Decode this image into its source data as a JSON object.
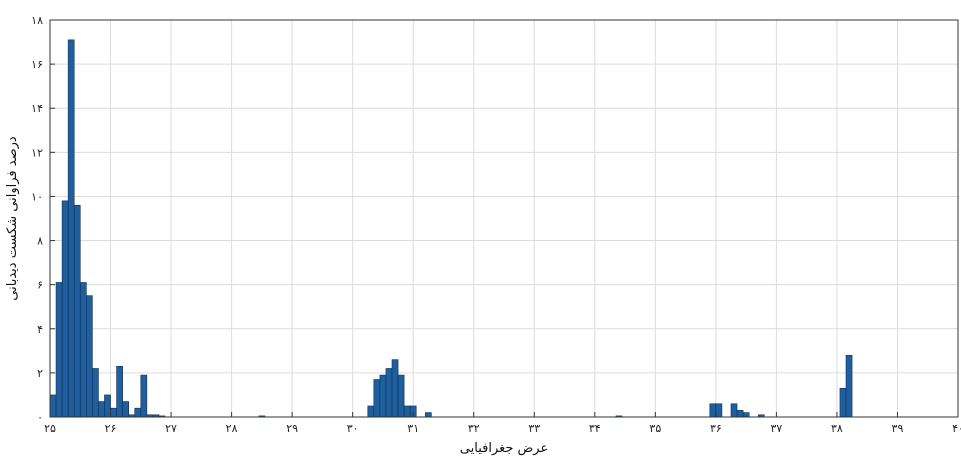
{
  "chart_data": {
    "type": "bar",
    "xlabel": "عرض جغرافیایی",
    "ylabel": "درصد فراوانی شکست دیدبانی",
    "xlim": [
      25,
      40
    ],
    "ylim": [
      0,
      18
    ],
    "x_ticks": [
      25,
      26,
      27,
      28,
      29,
      30,
      31,
      32,
      33,
      34,
      35,
      36,
      37,
      38,
      39,
      40
    ],
    "x_tick_labels": [
      "۲۵",
      "۲۶",
      "۲۷",
      "۲۸",
      "۲۹",
      "۳۰",
      "۳۱",
      "۳۲",
      "۳۳",
      "۳۴",
      "۳۵",
      "۳۶",
      "۳۷",
      "۳۸",
      "۳۹",
      "۴۰"
    ],
    "y_ticks": [
      0,
      2,
      4,
      6,
      8,
      10,
      12,
      14,
      16,
      18
    ],
    "y_tick_labels": [
      "۰",
      "۲",
      "۴",
      "۶",
      "۸",
      "۱۰",
      "۱۲",
      "۱۴",
      "۱۶",
      "۱۸"
    ],
    "grid": true,
    "bar_width": 0.1,
    "color": "#1f5f9e",
    "edge_color": "#0d2f55",
    "x": [
      25.05,
      25.15,
      25.25,
      25.35,
      25.45,
      25.55,
      25.65,
      25.75,
      25.85,
      25.95,
      26.05,
      26.15,
      26.25,
      26.35,
      26.45,
      26.55,
      26.65,
      26.75,
      26.85,
      28.5,
      30.3,
      30.4,
      30.5,
      30.6,
      30.7,
      30.8,
      30.9,
      31.0,
      31.25,
      34.4,
      35.95,
      36.05,
      36.3,
      36.4,
      36.5,
      36.75,
      38.1,
      38.2
    ],
    "values": [
      1.0,
      6.1,
      9.8,
      17.1,
      9.6,
      6.1,
      5.5,
      2.2,
      0.7,
      1.0,
      0.4,
      2.3,
      0.7,
      0.1,
      0.4,
      1.9,
      0.1,
      0.1,
      0.05,
      0.05,
      0.5,
      1.7,
      1.9,
      2.2,
      2.6,
      1.9,
      0.5,
      0.5,
      0.2,
      0.05,
      0.6,
      0.6,
      0.6,
      0.3,
      0.2,
      0.1,
      1.3,
      2.8
    ]
  }
}
